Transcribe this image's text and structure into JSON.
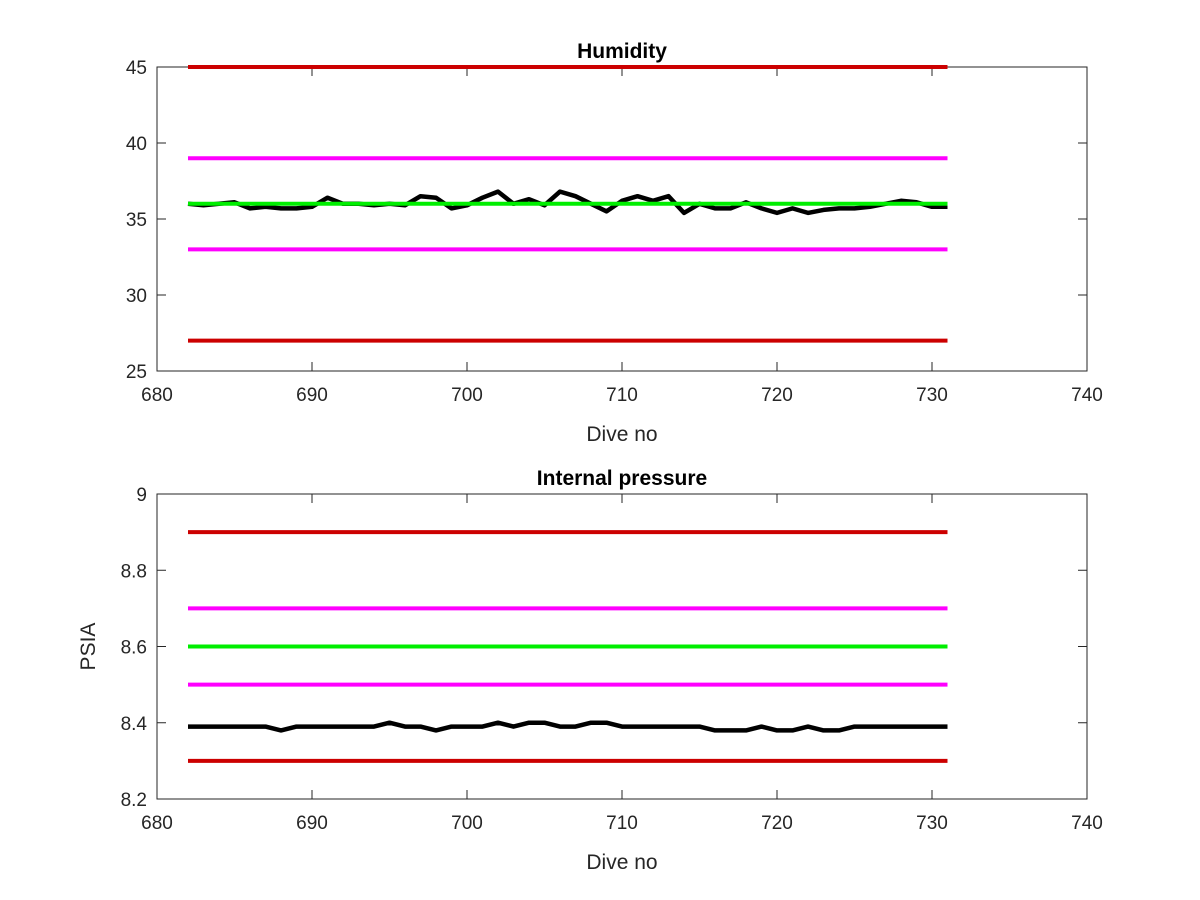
{
  "colors": {
    "red": "#cc0000",
    "magenta": "#ff00ff",
    "green": "#00ee00",
    "black": "#000000",
    "axis": "#262626"
  },
  "chart_data": [
    {
      "type": "line",
      "title": "Humidity",
      "xlabel": "Dive no",
      "ylabel": "",
      "xlim": [
        680,
        740
      ],
      "ylim": [
        25,
        45
      ],
      "xticks": [
        "680",
        "690",
        "700",
        "710",
        "720",
        "730",
        "740"
      ],
      "yticks": [
        "25",
        "30",
        "35",
        "40",
        "45"
      ],
      "grid": false,
      "legend": "none",
      "series": [
        {
          "color": "red",
          "x": [
            682,
            731
          ],
          "values": [
            45,
            45
          ]
        },
        {
          "color": "magenta",
          "x": [
            682,
            731
          ],
          "values": [
            39,
            39
          ]
        },
        {
          "color": "magenta",
          "x": [
            682,
            731
          ],
          "values": [
            33,
            33
          ]
        },
        {
          "color": "red",
          "x": [
            682,
            731
          ],
          "values": [
            27,
            27
          ]
        },
        {
          "color": "black",
          "x": [
            682,
            683,
            684,
            685,
            686,
            687,
            688,
            689,
            690,
            691,
            692,
            693,
            694,
            695,
            696,
            697,
            698,
            699,
            700,
            701,
            702,
            703,
            704,
            705,
            706,
            707,
            708,
            709,
            710,
            711,
            712,
            713,
            714,
            715,
            716,
            717,
            718,
            719,
            720,
            721,
            722,
            723,
            724,
            725,
            726,
            727,
            728,
            729,
            730,
            731
          ],
          "values": [
            36.0,
            35.9,
            36.0,
            36.1,
            35.7,
            35.8,
            35.7,
            35.7,
            35.8,
            36.4,
            36.0,
            36.0,
            35.9,
            36.0,
            35.9,
            36.5,
            36.4,
            35.7,
            35.9,
            36.4,
            36.8,
            36.0,
            36.3,
            35.9,
            36.8,
            36.5,
            36.0,
            35.5,
            36.2,
            36.5,
            36.2,
            36.5,
            35.4,
            36.0,
            35.7,
            35.7,
            36.1,
            35.7,
            35.4,
            35.7,
            35.4,
            35.6,
            35.7,
            35.7,
            35.8,
            36.0,
            36.2,
            36.1,
            35.8,
            35.8
          ]
        },
        {
          "color": "green",
          "x": [
            682,
            731
          ],
          "values": [
            36,
            36
          ]
        }
      ]
    },
    {
      "type": "line",
      "title": "Internal pressure",
      "xlabel": "Dive no",
      "ylabel": "PSIA",
      "xlim": [
        680,
        740
      ],
      "ylim": [
        8.2,
        9
      ],
      "xticks": [
        "680",
        "690",
        "700",
        "710",
        "720",
        "730",
        "740"
      ],
      "yticks": [
        "8.2",
        "8.4",
        "8.6",
        "8.8",
        "9"
      ],
      "grid": false,
      "legend": "none",
      "series": [
        {
          "color": "red",
          "x": [
            682,
            731
          ],
          "values": [
            8.9,
            8.9
          ]
        },
        {
          "color": "magenta",
          "x": [
            682,
            731
          ],
          "values": [
            8.7,
            8.7
          ]
        },
        {
          "color": "green",
          "x": [
            682,
            731
          ],
          "values": [
            8.6,
            8.6
          ]
        },
        {
          "color": "magenta",
          "x": [
            682,
            731
          ],
          "values": [
            8.5,
            8.5
          ]
        },
        {
          "color": "red",
          "x": [
            682,
            731
          ],
          "values": [
            8.3,
            8.3
          ]
        },
        {
          "color": "black",
          "x": [
            682,
            683,
            684,
            685,
            686,
            687,
            688,
            689,
            690,
            691,
            692,
            693,
            694,
            695,
            696,
            697,
            698,
            699,
            700,
            701,
            702,
            703,
            704,
            705,
            706,
            707,
            708,
            709,
            710,
            711,
            712,
            713,
            714,
            715,
            716,
            717,
            718,
            719,
            720,
            721,
            722,
            723,
            724,
            725,
            726,
            727,
            728,
            729,
            730,
            731
          ],
          "values": [
            8.39,
            8.39,
            8.39,
            8.39,
            8.39,
            8.39,
            8.38,
            8.39,
            8.39,
            8.39,
            8.39,
            8.39,
            8.39,
            8.4,
            8.39,
            8.39,
            8.38,
            8.39,
            8.39,
            8.39,
            8.4,
            8.39,
            8.4,
            8.4,
            8.39,
            8.39,
            8.4,
            8.4,
            8.39,
            8.39,
            8.39,
            8.39,
            8.39,
            8.39,
            8.38,
            8.38,
            8.38,
            8.39,
            8.38,
            8.38,
            8.39,
            8.38,
            8.38,
            8.39,
            8.39,
            8.39,
            8.39,
            8.39,
            8.39,
            8.39
          ]
        }
      ]
    }
  ]
}
